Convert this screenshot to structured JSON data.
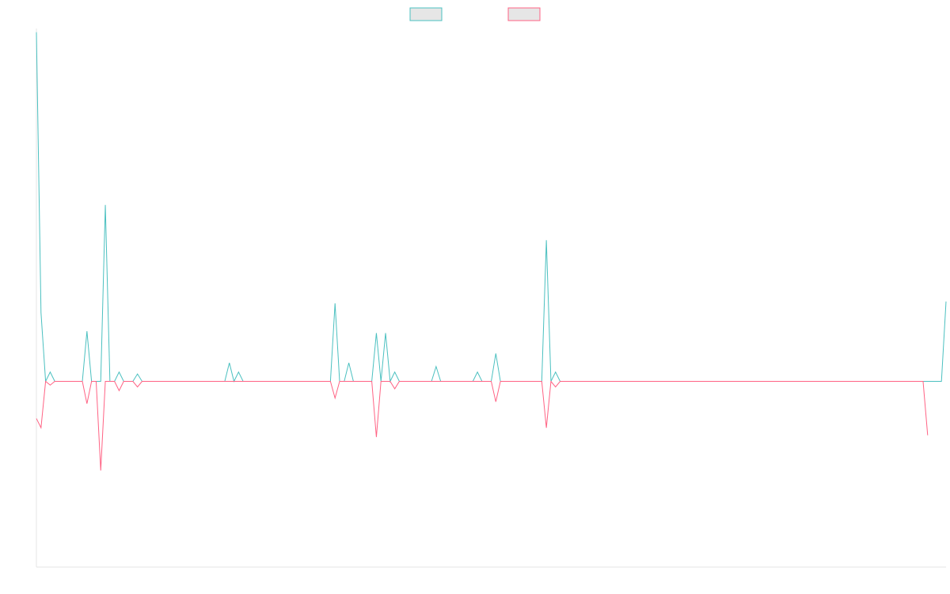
{
  "chart_data": {
    "type": "line",
    "title": "",
    "xlabel": "",
    "ylabel": "",
    "x_count": 193,
    "ylim": [
      -1.0,
      1.9
    ],
    "grid": false,
    "legend": {
      "placement": "top-center"
    },
    "series": [
      {
        "color": "#4bc0c0",
        "legend_fill": "#e6e6e6",
        "values": [
          1.88,
          0.37,
          0.0,
          0.05,
          0.0,
          0.0,
          0.0,
          0.0,
          0.0,
          0.0,
          0.0,
          0.27,
          0.0,
          0.0,
          0.0,
          0.95,
          0.0,
          0.0,
          0.05,
          0.0,
          0.0,
          0.0,
          0.04,
          0.0,
          0.0,
          0.0,
          0.0,
          0.0,
          0.0,
          0.0,
          0.0,
          0.0,
          0.0,
          0.0,
          0.0,
          0.0,
          0.0,
          0.0,
          0.0,
          0.0,
          0.0,
          0.0,
          0.1,
          0.0,
          0.05,
          0.0,
          0.0,
          0.0,
          0.0,
          0.0,
          0.0,
          0.0,
          0.0,
          0.0,
          0.0,
          0.0,
          0.0,
          0.0,
          0.0,
          0.0,
          0.0,
          0.0,
          0.0,
          0.0,
          0.0,
          0.42,
          0.0,
          0.0,
          0.1,
          0.0,
          0.0,
          0.0,
          0.0,
          0.0,
          0.26,
          0.0,
          0.26,
          0.0,
          0.05,
          0.0,
          0.0,
          0.0,
          0.0,
          0.0,
          0.0,
          0.0,
          0.0,
          0.08,
          0.0,
          0.0,
          0.0,
          0.0,
          0.0,
          0.0,
          0.0,
          0.0,
          0.05,
          0.0,
          0.0,
          0.0,
          0.15,
          0.0,
          0.0,
          0.0,
          0.0,
          0.0,
          0.0,
          0.0,
          0.0,
          0.0,
          0.0,
          0.76,
          0.0,
          0.05,
          0.0,
          0.0,
          0.0,
          0.0,
          0.0,
          0.0,
          0.0,
          0.0,
          0.0,
          0.0,
          0.0,
          0.0,
          0.0,
          0.0,
          0.0,
          0.0,
          0.0,
          0.0,
          0.0,
          0.0,
          0.0,
          0.0,
          0.0,
          0.0,
          0.0,
          0.0,
          0.0,
          0.0,
          0.0,
          0.0,
          0.0,
          0.0,
          0.0,
          0.0,
          0.0,
          0.0,
          0.0,
          0.0,
          0.0,
          0.0,
          0.0,
          0.0,
          0.0,
          0.0,
          0.0,
          0.0,
          0.0,
          0.0,
          0.0,
          0.0,
          0.0,
          0.0,
          0.0,
          0.0,
          0.0,
          0.0,
          0.0,
          0.0,
          0.0,
          0.0,
          0.0,
          0.0,
          0.0,
          0.0,
          0.0,
          0.0,
          0.0,
          0.0,
          0.0,
          0.0,
          0.0,
          0.0,
          0.0,
          0.0,
          0.0,
          0.0,
          0.0,
          0.0,
          0.0,
          0.0,
          0.0,
          0.0,
          0.0,
          0.0,
          0.43
        ]
      },
      {
        "color": "#ff6384",
        "legend_fill": "#e6e6e6",
        "values": [
          -0.2,
          -0.25,
          0.0,
          -0.02,
          0.0,
          0.0,
          0.0,
          0.0,
          0.0,
          0.0,
          0.0,
          -0.12,
          0.0,
          0.0,
          -0.48,
          0.0,
          0.0,
          0.0,
          -0.05,
          0.0,
          0.0,
          0.0,
          -0.03,
          0.0,
          0.0,
          0.0,
          0.0,
          0.0,
          0.0,
          0.0,
          0.0,
          0.0,
          0.0,
          0.0,
          0.0,
          0.0,
          0.0,
          0.0,
          0.0,
          0.0,
          0.0,
          0.0,
          0.0,
          0.0,
          0.0,
          0.0,
          0.0,
          0.0,
          0.0,
          0.0,
          0.0,
          0.0,
          0.0,
          0.0,
          0.0,
          0.0,
          0.0,
          0.0,
          0.0,
          0.0,
          0.0,
          0.0,
          0.0,
          0.0,
          0.0,
          -0.09,
          0.0,
          0.0,
          0.0,
          0.0,
          0.0,
          0.0,
          0.0,
          0.0,
          -0.3,
          0.0,
          0.0,
          0.0,
          -0.04,
          0.0,
          0.0,
          0.0,
          0.0,
          0.0,
          0.0,
          0.0,
          0.0,
          0.0,
          0.0,
          0.0,
          0.0,
          0.0,
          0.0,
          0.0,
          0.0,
          0.0,
          0.0,
          0.0,
          0.0,
          0.0,
          -0.11,
          0.0,
          0.0,
          0.0,
          0.0,
          0.0,
          0.0,
          0.0,
          0.0,
          0.0,
          0.0,
          -0.25,
          0.0,
          -0.03,
          0.0,
          0.0,
          0.0,
          0.0,
          0.0,
          0.0,
          0.0,
          0.0,
          0.0,
          0.0,
          0.0,
          0.0,
          0.0,
          0.0,
          0.0,
          0.0,
          0.0,
          0.0,
          0.0,
          0.0,
          0.0,
          0.0,
          0.0,
          0.0,
          0.0,
          0.0,
          0.0,
          0.0,
          0.0,
          0.0,
          0.0,
          0.0,
          0.0,
          0.0,
          0.0,
          0.0,
          0.0,
          0.0,
          0.0,
          0.0,
          0.0,
          0.0,
          0.0,
          0.0,
          0.0,
          0.0,
          0.0,
          0.0,
          0.0,
          0.0,
          0.0,
          0.0,
          0.0,
          0.0,
          0.0,
          0.0,
          0.0,
          0.0,
          0.0,
          0.0,
          0.0,
          0.0,
          0.0,
          0.0,
          0.0,
          0.0,
          0.0,
          0.0,
          0.0,
          0.0,
          0.0,
          0.0,
          0.0,
          0.0,
          0.0,
          0.0,
          0.0,
          0.0,
          0.0,
          0.0,
          -0.29
        ]
      }
    ]
  }
}
